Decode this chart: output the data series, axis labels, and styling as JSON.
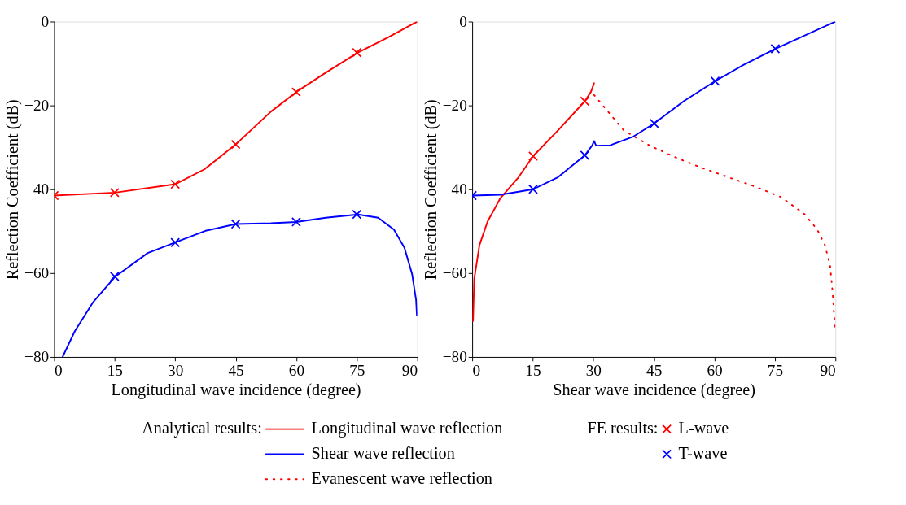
{
  "chart_data": [
    {
      "type": "line",
      "xlabel": "Longitudinal wave incidence (degree)",
      "ylabel": "Reflection Coefficient (dB)",
      "xlim": [
        0,
        90
      ],
      "xticks": [
        0,
        15,
        30,
        45,
        60,
        75,
        90
      ],
      "ylim": [
        -80,
        0
      ],
      "yticks": [
        {
          "value": -80,
          "label": "−80"
        },
        {
          "value": -60,
          "label": "−60"
        },
        {
          "value": -40,
          "label": "−40"
        },
        {
          "value": -20,
          "label": "−20"
        },
        0
      ],
      "grid": false,
      "series": [
        {
          "color": "#ff0000",
          "line_style": "solid",
          "x": [
            0,
            15.1,
            30,
            37.3,
            45,
            53.7,
            60,
            67.3,
            75.3,
            82.9,
            90
          ],
          "values": [
            -41.5,
            -40.8,
            -38.8,
            -35.2,
            -29.3,
            -21.5,
            -16.8,
            -12.2,
            -7.4,
            -3.7,
            0
          ]
        },
        {
          "color": "#0000ff",
          "line_style": "solid",
          "x": [
            2.1,
            5.1,
            9.6,
            15.2,
            23.2,
            30,
            37.5,
            45,
            53.7,
            60,
            67.3,
            75.3,
            80.3,
            84.2,
            86.8,
            88.7,
            89.7,
            89.9
          ],
          "values": [
            -80,
            -73.9,
            -67,
            -60.8,
            -55.2,
            -52.7,
            -49.9,
            -48.3,
            -48.1,
            -47.8,
            -46.8,
            -46,
            -46.8,
            -49.6,
            -53.9,
            -60.2,
            -66.4,
            -70.1
          ]
        },
        {
          "type": "scatter",
          "color": "#ff0000",
          "marker": "cross",
          "x": [
            0,
            15,
            30,
            45,
            60,
            75
          ],
          "values": [
            -41.5,
            -40.8,
            -38.8,
            -29.3,
            -16.8,
            -7.4
          ]
        },
        {
          "type": "scatter",
          "color": "#0000ff",
          "marker": "cross",
          "x": [
            15,
            30,
            45,
            60,
            75
          ],
          "values": [
            -60.8,
            -52.7,
            -48.3,
            -47.8,
            -46
          ]
        }
      ]
    },
    {
      "type": "line",
      "xlabel": "Shear wave incidence (degree)",
      "ylabel": "Reflection Coefficient (dB)",
      "xlim": [
        0,
        90
      ],
      "xticks": [
        0,
        15,
        30,
        45,
        60,
        75,
        90
      ],
      "ylim": [
        -80,
        0
      ],
      "yticks": [
        {
          "value": -80,
          "label": "−80"
        },
        {
          "value": -60,
          "label": "−60"
        },
        {
          "value": -40,
          "label": "−40"
        },
        {
          "value": -20,
          "label": "−20"
        },
        0
      ],
      "grid": false,
      "legend": "bottom",
      "legend_title": "Analytical results:",
      "annotations": [
        "FE results:"
      ],
      "series": [
        {
          "name": "Longitudinal wave reflection",
          "color": "#ff0000",
          "line_style": "solid",
          "x": [
            0.2,
            0.5,
            1.8,
            3.8,
            7,
            11.5,
            15.1,
            21.3,
            27.9,
            29.4,
            30.2
          ],
          "values": [
            -71.4,
            -61.4,
            -53.3,
            -47.7,
            -42.1,
            -37.1,
            -32.1,
            -25.9,
            -19,
            -16.8,
            -14.7
          ]
        },
        {
          "name": "Shear wave reflection",
          "color": "#0000ff",
          "line_style": "solid",
          "x": [
            0,
            7,
            15.1,
            21.3,
            27.9,
            29.7,
            30.2,
            30.7,
            34.2,
            40,
            45.1,
            52.4,
            60.2,
            67.3,
            75.1,
            90
          ],
          "values": [
            -41.5,
            -41.3,
            -40,
            -37.1,
            -31.9,
            -29.6,
            -28.5,
            -29.6,
            -29.5,
            -27.4,
            -24.3,
            -19,
            -14.2,
            -10.3,
            -6.5,
            0
          ]
        },
        {
          "name": "Evanescent wave reflection",
          "color": "#ff0000",
          "line_style": "dotted",
          "x": [
            30.2,
            37.5,
            44,
            50.4,
            56.9,
            63.4,
            69.9,
            76.4,
            82.2,
            85.5,
            87.4,
            88.7,
            89.3,
            89.9
          ],
          "values": [
            -17.5,
            -25.9,
            -29.6,
            -32.4,
            -34.9,
            -37.1,
            -39.3,
            -41.8,
            -45.8,
            -49.6,
            -53.3,
            -58.3,
            -64.5,
            -73.3
          ]
        },
        {
          "name": "L-wave",
          "type": "scatter",
          "color": "#ff0000",
          "marker": "cross",
          "x": [
            15.1,
            27.9
          ],
          "values": [
            -32.1,
            -19
          ]
        },
        {
          "name": "T-wave",
          "type": "scatter",
          "color": "#0000ff",
          "marker": "cross",
          "x": [
            0,
            15.1,
            27.9,
            45.1,
            60.2,
            75.1
          ],
          "values": [
            -41.5,
            -40,
            -31.9,
            -24.3,
            -14.2,
            -6.5
          ]
        }
      ]
    }
  ]
}
